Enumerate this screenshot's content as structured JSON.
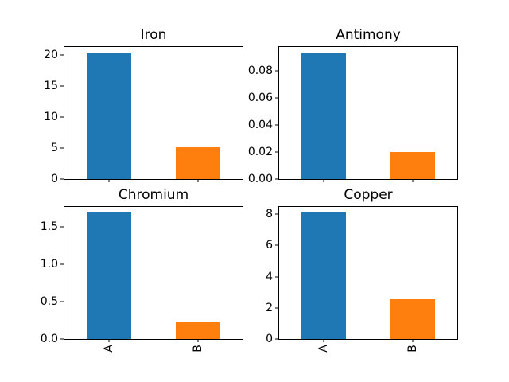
{
  "figure": {
    "background": "#ffffff"
  },
  "palette": {
    "bar_colors": [
      "#1f77b4",
      "#ff7f0e"
    ]
  },
  "chart_data": [
    {
      "type": "bar",
      "title": "Iron",
      "categories": [
        "A",
        "B"
      ],
      "values": [
        20.3,
        5.1
      ],
      "xlabel": "",
      "ylabel": "",
      "ylim": [
        0,
        21.3
      ],
      "ytick_values": [
        0,
        5,
        10,
        15,
        20
      ],
      "ytick_labels": [
        "0",
        "5",
        "10",
        "15",
        "20"
      ],
      "show_xtick_labels": false,
      "grid": false,
      "legend": "none"
    },
    {
      "type": "bar",
      "title": "Antimony",
      "categories": [
        "A",
        "B"
      ],
      "values": [
        0.093,
        0.02
      ],
      "xlabel": "",
      "ylabel": "",
      "ylim": [
        0,
        0.098
      ],
      "ytick_values": [
        0,
        0.02,
        0.04,
        0.06,
        0.08
      ],
      "ytick_labels": [
        "0.00",
        "0.02",
        "0.04",
        "0.06",
        "0.08"
      ],
      "show_xtick_labels": false,
      "grid": false,
      "legend": "none"
    },
    {
      "type": "bar",
      "title": "Chromium",
      "categories": [
        "A",
        "B"
      ],
      "values": [
        1.7,
        0.23
      ],
      "xlabel": "",
      "ylabel": "",
      "ylim": [
        0,
        1.76
      ],
      "ytick_values": [
        0,
        0.5,
        1.0,
        1.5
      ],
      "ytick_labels": [
        "0.0",
        "0.5",
        "1.0",
        "1.5"
      ],
      "show_xtick_labels": true,
      "grid": false,
      "legend": "none"
    },
    {
      "type": "bar",
      "title": "Copper",
      "categories": [
        "A",
        "B"
      ],
      "values": [
        8.1,
        2.54
      ],
      "xlabel": "",
      "ylabel": "",
      "ylim": [
        0,
        8.46
      ],
      "ytick_values": [
        0,
        2,
        4,
        6,
        8
      ],
      "ytick_labels": [
        "0",
        "2",
        "4",
        "6",
        "8"
      ],
      "show_xtick_labels": true,
      "grid": false,
      "legend": "none"
    }
  ]
}
